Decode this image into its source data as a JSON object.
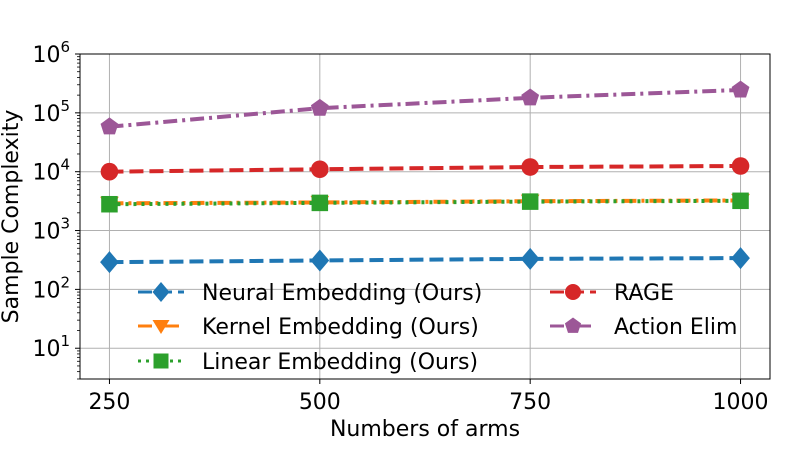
{
  "chart_data": {
    "type": "line",
    "title": "",
    "xlabel": "Numbers of arms",
    "ylabel": "Sample Complexity",
    "x": [
      250,
      500,
      750,
      1000
    ],
    "x_tick_labels": [
      "250",
      "500",
      "750",
      "1000"
    ],
    "yscale": "log",
    "ylim": [
      3,
      1000000
    ],
    "y_ticks": [
      {
        "value": 10,
        "base": "10",
        "exp": "1"
      },
      {
        "value": 100,
        "base": "10",
        "exp": "2"
      },
      {
        "value": 1000,
        "base": "10",
        "exp": "3"
      },
      {
        "value": 10000,
        "base": "10",
        "exp": "4"
      },
      {
        "value": 100000,
        "base": "10",
        "exp": "5"
      },
      {
        "value": 1000000,
        "base": "10",
        "exp": "6"
      }
    ],
    "grid": true,
    "legend_position": "lower-center",
    "series": [
      {
        "name": "Neural Embedding (Ours)",
        "color": "#1f77b4",
        "marker": "diamond",
        "dash": "dashed",
        "values": [
          290,
          310,
          330,
          340
        ]
      },
      {
        "name": "Kernel Embedding (Ours)",
        "color": "#ff7f0e",
        "marker": "triangle-down",
        "dash": "dashdot",
        "values": [
          2900,
          3000,
          3150,
          3250
        ]
      },
      {
        "name": "Linear Embedding (Ours)",
        "color": "#2ca02c",
        "marker": "square",
        "dash": "dotted",
        "values": [
          2800,
          2950,
          3100,
          3200
        ]
      },
      {
        "name": "RAGE",
        "color": "#d62728",
        "marker": "circle",
        "dash": "dashed",
        "values": [
          10000,
          11000,
          12000,
          12500
        ]
      },
      {
        "name": "Action Elim",
        "color": "#9c5797",
        "marker": "pentagon",
        "dash": "dashdot",
        "values": [
          58000,
          120000,
          180000,
          245000
        ]
      }
    ]
  }
}
